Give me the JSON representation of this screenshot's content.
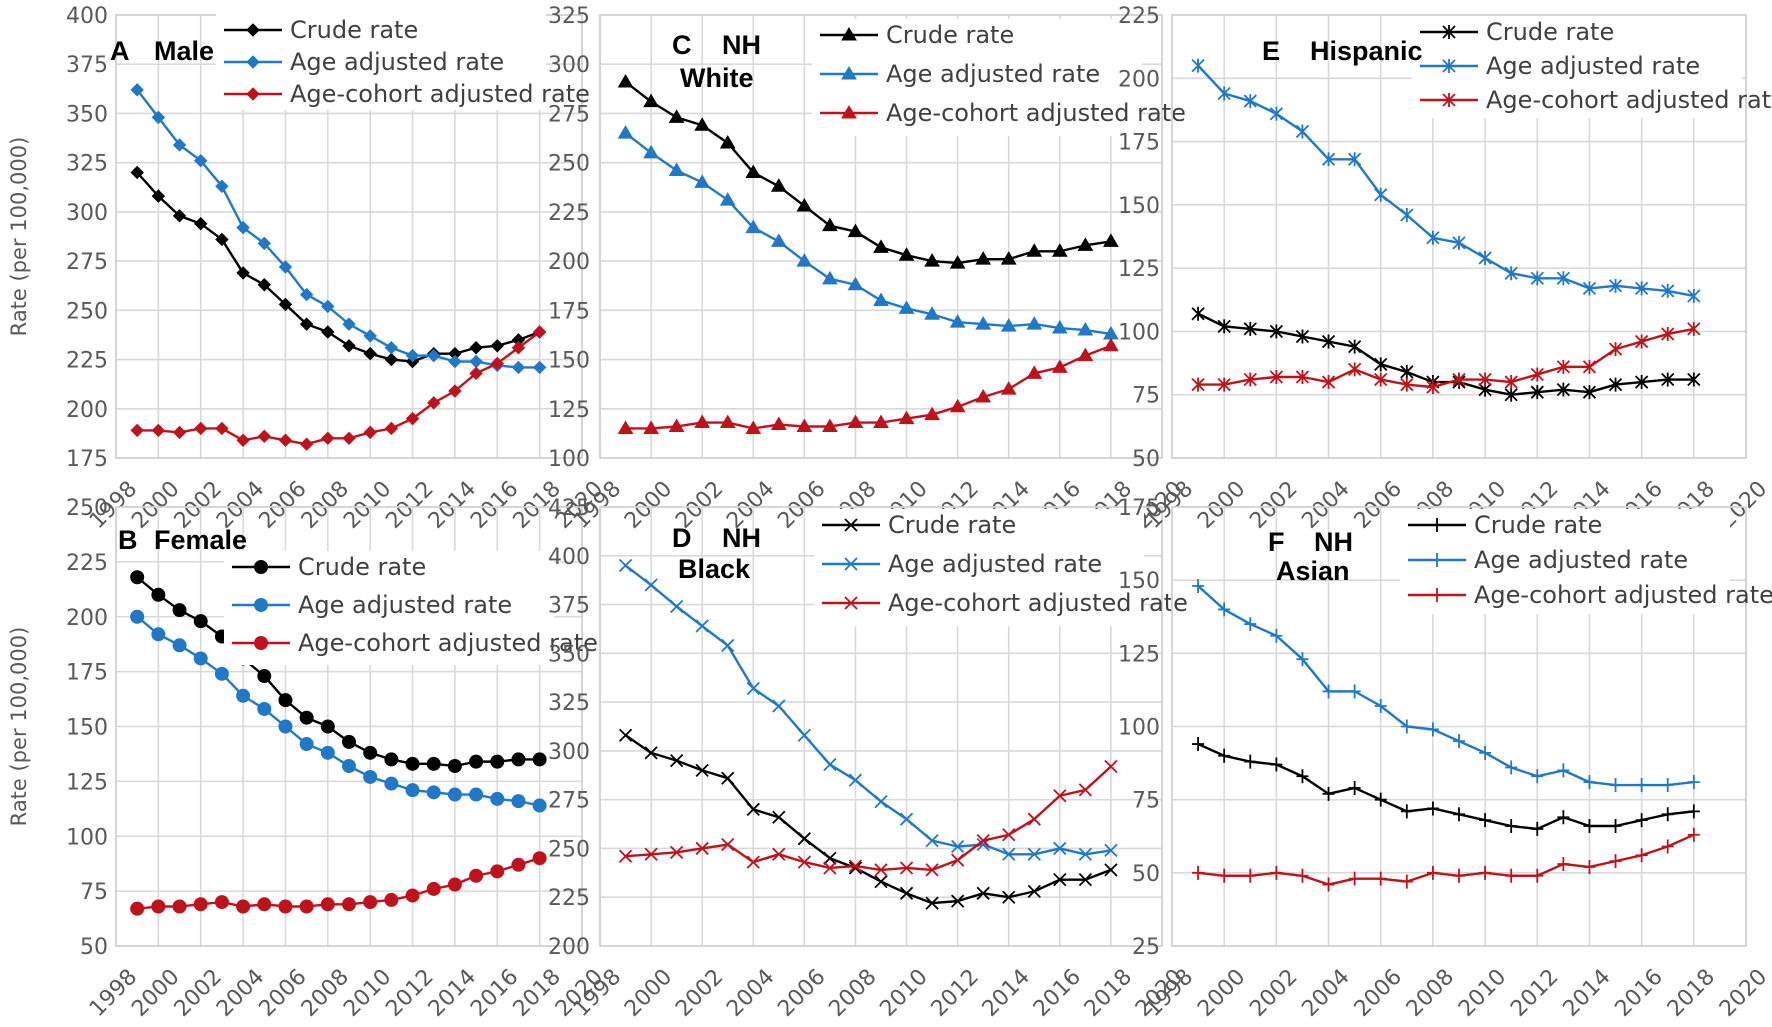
{
  "chart_data": [
    {
      "id": "A",
      "title": "Male",
      "type": "line",
      "marker": "diamond",
      "ylabel": "Rate (per 100,000)",
      "ylim": [
        175,
        400
      ],
      "ystep": 25,
      "xlim": [
        1998,
        2020
      ],
      "xticks": [
        1998,
        2000,
        2002,
        2004,
        2006,
        2008,
        2010,
        2012,
        2014,
        2016,
        2018,
        2020
      ],
      "x": [
        1999,
        2000,
        2001,
        2002,
        2003,
        2004,
        2005,
        2006,
        2007,
        2008,
        2009,
        2010,
        2011,
        2012,
        2013,
        2014,
        2015,
        2016,
        2017,
        2018
      ],
      "grid": true,
      "legend_position": "top-right",
      "series": [
        {
          "name": "Crude rate",
          "color": "#000000",
          "values": [
            320,
            308,
            298,
            294,
            286,
            269,
            263,
            253,
            243,
            239,
            232,
            228,
            225,
            224,
            228,
            228,
            231,
            232,
            235,
            239
          ]
        },
        {
          "name": "Age adjusted rate",
          "color": "#1f78c8",
          "values": [
            362,
            348,
            334,
            326,
            313,
            292,
            284,
            272,
            258,
            252,
            243,
            237,
            231,
            227,
            227,
            224,
            224,
            222,
            221,
            221
          ]
        },
        {
          "name": "Age-cohort adjusted rate",
          "color": "#c0121b",
          "values": [
            189,
            189,
            188,
            190,
            190,
            184,
            186,
            184,
            182,
            185,
            185,
            188,
            190,
            195,
            203,
            209,
            218,
            223,
            231,
            239
          ]
        }
      ]
    },
    {
      "id": "B",
      "title": "Female",
      "type": "line",
      "marker": "circle",
      "ylabel": "Rate (per 100,000)",
      "ylim": [
        50,
        250
      ],
      "ystep": 25,
      "xlim": [
        1998,
        2020
      ],
      "xticks": [
        1998,
        2000,
        2002,
        2004,
        2006,
        2008,
        2010,
        2012,
        2014,
        2016,
        2018,
        2020
      ],
      "x": [
        1999,
        2000,
        2001,
        2002,
        2003,
        2004,
        2005,
        2006,
        2007,
        2008,
        2009,
        2010,
        2011,
        2012,
        2013,
        2014,
        2015,
        2016,
        2017,
        2018
      ],
      "grid": true,
      "legend_position": "top-right",
      "series": [
        {
          "name": "Crude rate",
          "color": "#000000",
          "values": [
            218,
            210,
            203,
            198,
            191,
            181,
            173,
            162,
            154,
            150,
            143,
            138,
            135,
            133,
            133,
            132,
            134,
            134,
            135,
            135
          ]
        },
        {
          "name": "Age adjusted rate",
          "color": "#1f78c8",
          "values": [
            200,
            192,
            187,
            181,
            174,
            164,
            158,
            150,
            142,
            138,
            132,
            127,
            124,
            121,
            120,
            119,
            119,
            117,
            116,
            114
          ]
        },
        {
          "name": "Age-cohort adjusted rate",
          "color": "#c0121b",
          "values": [
            67,
            68,
            68,
            69,
            70,
            68,
            69,
            68,
            68,
            69,
            69,
            70,
            71,
            73,
            76,
            78,
            82,
            84,
            87,
            90
          ]
        }
      ]
    },
    {
      "id": "C",
      "title": "NH White",
      "title_lines": [
        "NH",
        "White"
      ],
      "type": "line",
      "marker": "triangle",
      "ylabel": "",
      "ylim": [
        100,
        325
      ],
      "ystep": 25,
      "xlim": [
        1998,
        2020
      ],
      "xticks": [
        1998,
        2000,
        2002,
        2004,
        2006,
        2008,
        2010,
        2012,
        2014,
        2016,
        2018,
        2020
      ],
      "x": [
        1999,
        2000,
        2001,
        2002,
        2003,
        2004,
        2005,
        2006,
        2007,
        2008,
        2009,
        2010,
        2011,
        2012,
        2013,
        2014,
        2015,
        2016,
        2017,
        2018
      ],
      "grid": true,
      "legend_position": "top-right",
      "series": [
        {
          "name": "Crude rate",
          "color": "#000000",
          "values": [
            291,
            281,
            273,
            269,
            260,
            245,
            238,
            228,
            218,
            215,
            207,
            203,
            200,
            199,
            201,
            201,
            205,
            205,
            208,
            210
          ]
        },
        {
          "name": "Age adjusted rate",
          "color": "#1f78c8",
          "values": [
            265,
            255,
            246,
            240,
            231,
            217,
            210,
            200,
            191,
            188,
            180,
            176,
            173,
            169,
            168,
            167,
            168,
            166,
            165,
            163
          ]
        },
        {
          "name": "Age-cohort adjusted rate",
          "color": "#c0121b",
          "values": [
            115,
            115,
            116,
            118,
            118,
            115,
            117,
            116,
            116,
            118,
            118,
            120,
            122,
            126,
            131,
            135,
            143,
            146,
            152,
            157
          ]
        }
      ]
    },
    {
      "id": "D",
      "title": "NH Black",
      "title_lines": [
        "NH",
        "Black"
      ],
      "type": "line",
      "marker": "x",
      "ylabel": "",
      "ylim": [
        200,
        425
      ],
      "ystep": 25,
      "xlim": [
        1998,
        2020
      ],
      "xticks": [
        1998,
        2000,
        2002,
        2004,
        2006,
        2008,
        2010,
        2012,
        2014,
        2016,
        2018,
        2020
      ],
      "x": [
        1999,
        2000,
        2001,
        2002,
        2003,
        2004,
        2005,
        2006,
        2007,
        2008,
        2009,
        2010,
        2011,
        2012,
        2013,
        2014,
        2015,
        2016,
        2017,
        2018
      ],
      "grid": true,
      "legend_position": "top-right",
      "series": [
        {
          "name": "Crude rate",
          "color": "#000000",
          "values": [
            308,
            299,
            295,
            290,
            286,
            270,
            266,
            255,
            245,
            240,
            233,
            227,
            222,
            223,
            227,
            225,
            228,
            234,
            234,
            239
          ]
        },
        {
          "name": "Age adjusted rate",
          "color": "#1f78c8",
          "values": [
            395,
            385,
            374,
            364,
            354,
            332,
            323,
            308,
            293,
            285,
            274,
            265,
            254,
            251,
            252,
            247,
            247,
            250,
            247,
            249
          ]
        },
        {
          "name": "Age-cohort adjusted rate",
          "color": "#c0121b",
          "values": [
            246,
            247,
            248,
            250,
            252,
            243,
            247,
            243,
            240,
            241,
            239,
            240,
            239,
            244,
            254,
            257,
            265,
            277,
            280,
            292
          ]
        }
      ]
    },
    {
      "id": "E",
      "title": "Hispanic",
      "type": "line",
      "marker": "star",
      "ylabel": "",
      "ylim": [
        50,
        225
      ],
      "ystep": 25,
      "xlim": [
        1998,
        2020
      ],
      "xticks": [
        1998,
        2000,
        2002,
        2004,
        2006,
        2008,
        2010,
        2012,
        2014,
        2016,
        2018,
        2020
      ],
      "x": [
        1999,
        2000,
        2001,
        2002,
        2003,
        2004,
        2005,
        2006,
        2007,
        2008,
        2009,
        2010,
        2011,
        2012,
        2013,
        2014,
        2015,
        2016,
        2017,
        2018
      ],
      "grid": true,
      "legend_position": "top-right",
      "series": [
        {
          "name": "Crude rate",
          "color": "#000000",
          "values": [
            107,
            102,
            101,
            100,
            98,
            96,
            94,
            87,
            84,
            80,
            80,
            77,
            75,
            76,
            77,
            76,
            79,
            80,
            81,
            81
          ]
        },
        {
          "name": "Age adjusted rate",
          "color": "#1f78c8",
          "values": [
            205,
            194,
            191,
            186,
            179,
            168,
            168,
            154,
            146,
            137,
            135,
            129,
            123,
            121,
            121,
            117,
            118,
            117,
            116,
            114
          ]
        },
        {
          "name": "Age-cohort adjusted rate",
          "color": "#c0121b",
          "values": [
            79,
            79,
            81,
            82,
            82,
            80,
            85,
            81,
            79,
            78,
            81,
            81,
            80,
            83,
            86,
            86,
            93,
            96,
            99,
            101
          ]
        }
      ]
    },
    {
      "id": "F",
      "title": "NH Asian",
      "title_lines": [
        "NH",
        "Asian"
      ],
      "type": "line",
      "marker": "plus",
      "ylabel": "",
      "ylim": [
        25,
        175
      ],
      "ystep": 25,
      "xlim": [
        1998,
        2020
      ],
      "xticks": [
        1998,
        2000,
        2002,
        2004,
        2006,
        2008,
        2010,
        2012,
        2014,
        2016,
        2018,
        2020
      ],
      "x": [
        1999,
        2000,
        2001,
        2002,
        2003,
        2004,
        2005,
        2006,
        2007,
        2008,
        2009,
        2010,
        2011,
        2012,
        2013,
        2014,
        2015,
        2016,
        2017,
        2018
      ],
      "grid": true,
      "legend_position": "top-right",
      "series": [
        {
          "name": "Crude rate",
          "color": "#000000",
          "values": [
            94,
            90,
            88,
            87,
            83,
            77,
            79,
            75,
            71,
            72,
            70,
            68,
            66,
            65,
            69,
            66,
            66,
            68,
            70,
            71
          ]
        },
        {
          "name": "Age adjusted rate",
          "color": "#1f78c8",
          "values": [
            148,
            140,
            135,
            131,
            123,
            112,
            112,
            107,
            100,
            99,
            95,
            91,
            86,
            83,
            85,
            81,
            80,
            80,
            80,
            81
          ]
        },
        {
          "name": "Age-cohort adjusted rate",
          "color": "#c0121b",
          "values": [
            50,
            49,
            49,
            50,
            49,
            46,
            48,
            48,
            47,
            50,
            49,
            50,
            49,
            49,
            53,
            52,
            54,
            56,
            59,
            63
          ]
        }
      ]
    }
  ]
}
